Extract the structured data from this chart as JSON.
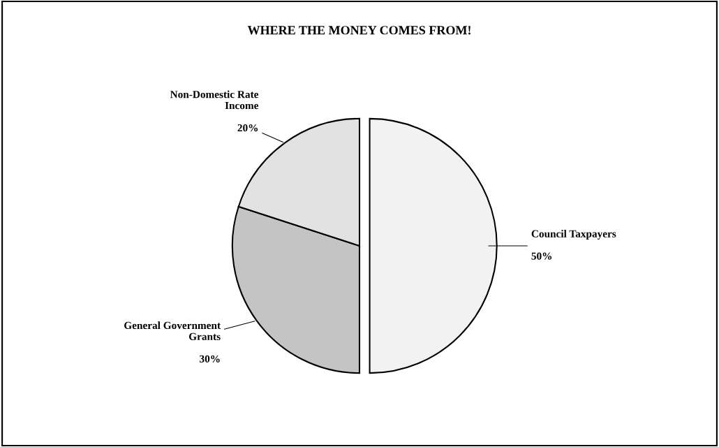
{
  "chart_data": {
    "type": "pie",
    "title": "WHERE THE MONEY COMES FROM!",
    "categories": [
      "Council Taxpayers",
      "General Government\nGrants",
      "Non-Domestic Rate\nIncome"
    ],
    "values": [
      50,
      30,
      20
    ],
    "colors": [
      "#f2f2f2",
      "#c4c4c4",
      "#e2e2e2"
    ],
    "value_labels": [
      "50%",
      "30%",
      "20%"
    ]
  }
}
